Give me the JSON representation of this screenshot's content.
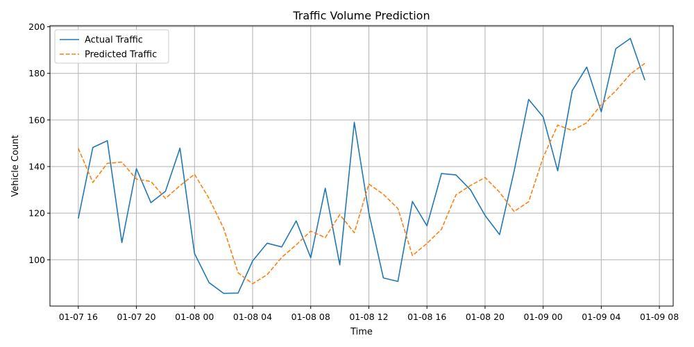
{
  "chart_data": {
    "type": "line",
    "title": "Traffic Volume Prediction",
    "xlabel": "Time",
    "ylabel": "Vehicle Count",
    "x_type": "datetime",
    "x": [
      "2024-01-07 16:00",
      "2024-01-07 17:00",
      "2024-01-07 18:00",
      "2024-01-07 19:00",
      "2024-01-07 20:00",
      "2024-01-07 21:00",
      "2024-01-07 22:00",
      "2024-01-07 23:00",
      "2024-01-08 00:00",
      "2024-01-08 01:00",
      "2024-01-08 02:00",
      "2024-01-08 03:00",
      "2024-01-08 04:00",
      "2024-01-08 05:00",
      "2024-01-08 06:00",
      "2024-01-08 07:00",
      "2024-01-08 08:00",
      "2024-01-08 09:00",
      "2024-01-08 10:00",
      "2024-01-08 11:00",
      "2024-01-08 12:00",
      "2024-01-08 13:00",
      "2024-01-08 14:00",
      "2024-01-08 15:00",
      "2024-01-08 16:00",
      "2024-01-08 17:00",
      "2024-01-08 18:00",
      "2024-01-08 19:00",
      "2024-01-08 20:00",
      "2024-01-08 21:00",
      "2024-01-08 22:00",
      "2024-01-08 23:00",
      "2024-01-09 00:00",
      "2024-01-09 01:00",
      "2024-01-09 02:00",
      "2024-01-09 03:00",
      "2024-01-09 04:00",
      "2024-01-09 05:00",
      "2024-01-09 06:00",
      "2024-01-09 07:00"
    ],
    "series": [
      {
        "name": "Actual Traffic",
        "color": "#1f77b4",
        "style": "solid",
        "values": [
          117.7,
          148.2,
          151.1,
          107.4,
          139.1,
          124.5,
          129.4,
          147.9,
          102.7,
          90.2,
          85.6,
          85.7,
          99.5,
          107.1,
          105.5,
          116.7,
          100.9,
          130.7,
          97.8,
          159.0,
          120.1,
          92.2,
          90.7,
          125.0,
          114.6,
          137.0,
          136.4,
          130.0,
          119.0,
          110.8,
          138.0,
          168.8,
          161.3,
          138.2,
          172.6,
          182.7,
          163.5,
          190.6,
          195.0,
          177.1
        ]
      },
      {
        "name": "Predicted Traffic",
        "color": "#ff7f0e",
        "style": "dashed",
        "values": [
          147.8,
          133.2,
          141.4,
          141.9,
          134.6,
          133.6,
          126.3,
          131.8,
          136.7,
          126.3,
          113.6,
          94.4,
          89.7,
          93.6,
          101.0,
          106.4,
          112.3,
          109.5,
          119.4,
          111.6,
          132.5,
          128.1,
          122.0,
          101.8,
          107.0,
          113.1,
          127.9,
          131.9,
          135.3,
          129.0,
          120.7,
          124.9,
          143.9,
          157.8,
          155.5,
          158.8,
          166.6,
          172.5,
          179.7,
          184.3
        ]
      }
    ],
    "x_ticks": [
      "01-07 16",
      "01-07 20",
      "01-08 00",
      "01-08 04",
      "01-08 08",
      "01-08 12",
      "01-08 16",
      "01-08 20",
      "01-09 00",
      "01-09 04",
      "01-09 08"
    ],
    "y_ticks": [
      "100",
      "120",
      "140",
      "160",
      "180",
      "200"
    ],
    "ylim": [
      80,
      200
    ],
    "grid": true,
    "legend_position": "upper-left"
  }
}
